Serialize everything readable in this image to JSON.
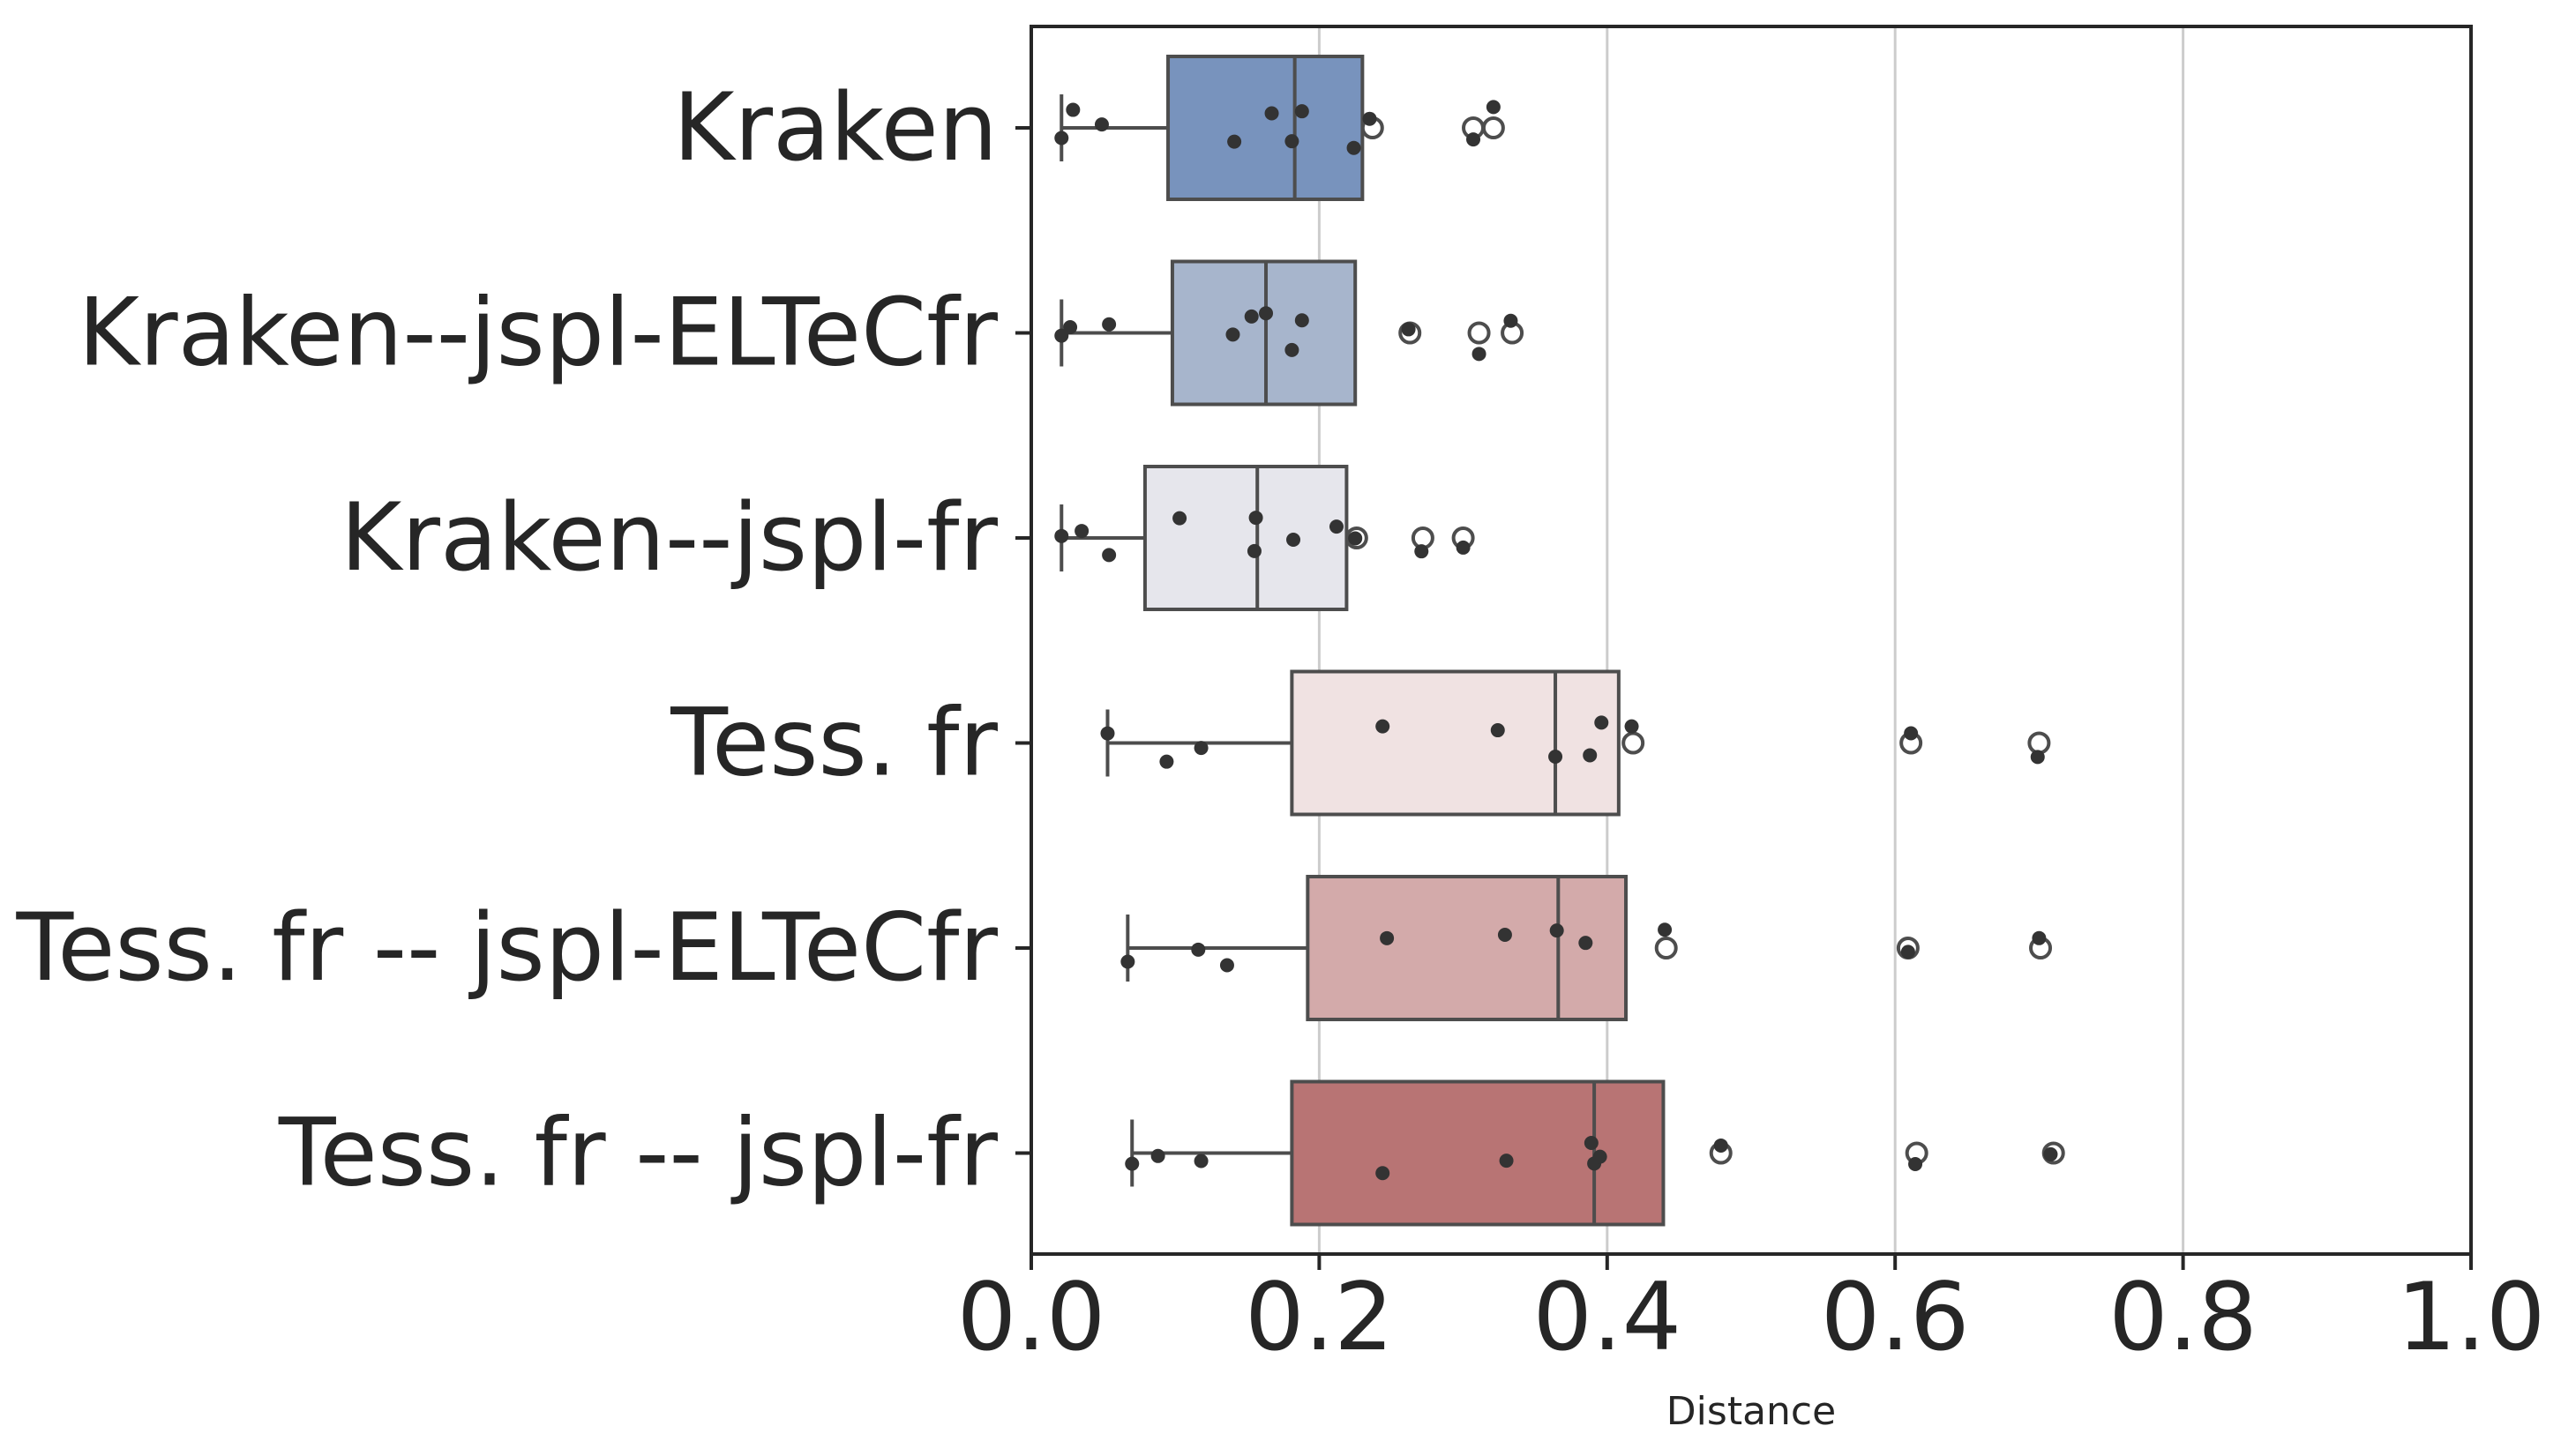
{
  "chart_data": {
    "type": "box",
    "orientation": "horizontal",
    "xlabel": "Distance",
    "ylabel": "",
    "xlim": [
      0.0,
      1.0
    ],
    "xticks": [
      "0.0",
      "0.2",
      "0.4",
      "0.6",
      "0.8",
      "1.0"
    ],
    "grid": "vertical",
    "categories": [
      "Kraken",
      "Kraken--jspl-ELTeCfr",
      "Kraken--jspl-fr",
      "Tess. fr",
      "Tess. fr -- jspl-ELTeCfr",
      "Tess. fr -- jspl-fr"
    ],
    "colors": [
      "#7893bd",
      "#a7b5cc",
      "#e6e6ec",
      "#f0e2e2",
      "#d3aaaa",
      "#b87474"
    ],
    "boxes": [
      {
        "whislo": 0.021,
        "q1": 0.095,
        "median": 0.183,
        "q3": 0.23,
        "whishi": 0.23,
        "fliers": [
          0.237,
          0.307,
          0.321
        ]
      },
      {
        "whislo": 0.021,
        "q1": 0.098,
        "median": 0.163,
        "q3": 0.225,
        "whishi": 0.225,
        "fliers": [
          0.263,
          0.311,
          0.334
        ]
      },
      {
        "whislo": 0.021,
        "q1": 0.079,
        "median": 0.157,
        "q3": 0.219,
        "whishi": 0.219,
        "fliers": [
          0.226,
          0.272,
          0.3
        ]
      },
      {
        "whislo": 0.053,
        "q1": 0.181,
        "median": 0.364,
        "q3": 0.408,
        "whishi": 0.408,
        "fliers": [
          0.418,
          0.611,
          0.7
        ]
      },
      {
        "whislo": 0.067,
        "q1": 0.192,
        "median": 0.366,
        "q3": 0.413,
        "whishi": 0.413,
        "fliers": [
          0.441,
          0.609,
          0.701
        ]
      },
      {
        "whislo": 0.07,
        "q1": 0.181,
        "median": 0.391,
        "q3": 0.439,
        "whishi": 0.439,
        "fliers": [
          0.479,
          0.615,
          0.71
        ]
      }
    ],
    "points": [
      [
        0.021,
        0.029,
        0.049,
        0.141,
        0.167,
        0.181,
        0.188,
        0.224,
        0.235,
        0.307,
        0.321
      ],
      [
        0.021,
        0.027,
        0.054,
        0.14,
        0.153,
        0.163,
        0.181,
        0.188,
        0.262,
        0.311,
        0.333
      ],
      [
        0.021,
        0.035,
        0.054,
        0.103,
        0.155,
        0.156,
        0.182,
        0.212,
        0.225,
        0.271,
        0.3
      ],
      [
        0.053,
        0.094,
        0.118,
        0.244,
        0.324,
        0.364,
        0.388,
        0.396,
        0.417,
        0.611,
        0.699
      ],
      [
        0.067,
        0.116,
        0.136,
        0.247,
        0.329,
        0.365,
        0.385,
        0.44,
        0.609,
        0.7
      ],
      [
        0.07,
        0.088,
        0.118,
        0.244,
        0.33,
        0.389,
        0.391,
        0.395,
        0.479,
        0.614,
        0.708
      ]
    ]
  }
}
